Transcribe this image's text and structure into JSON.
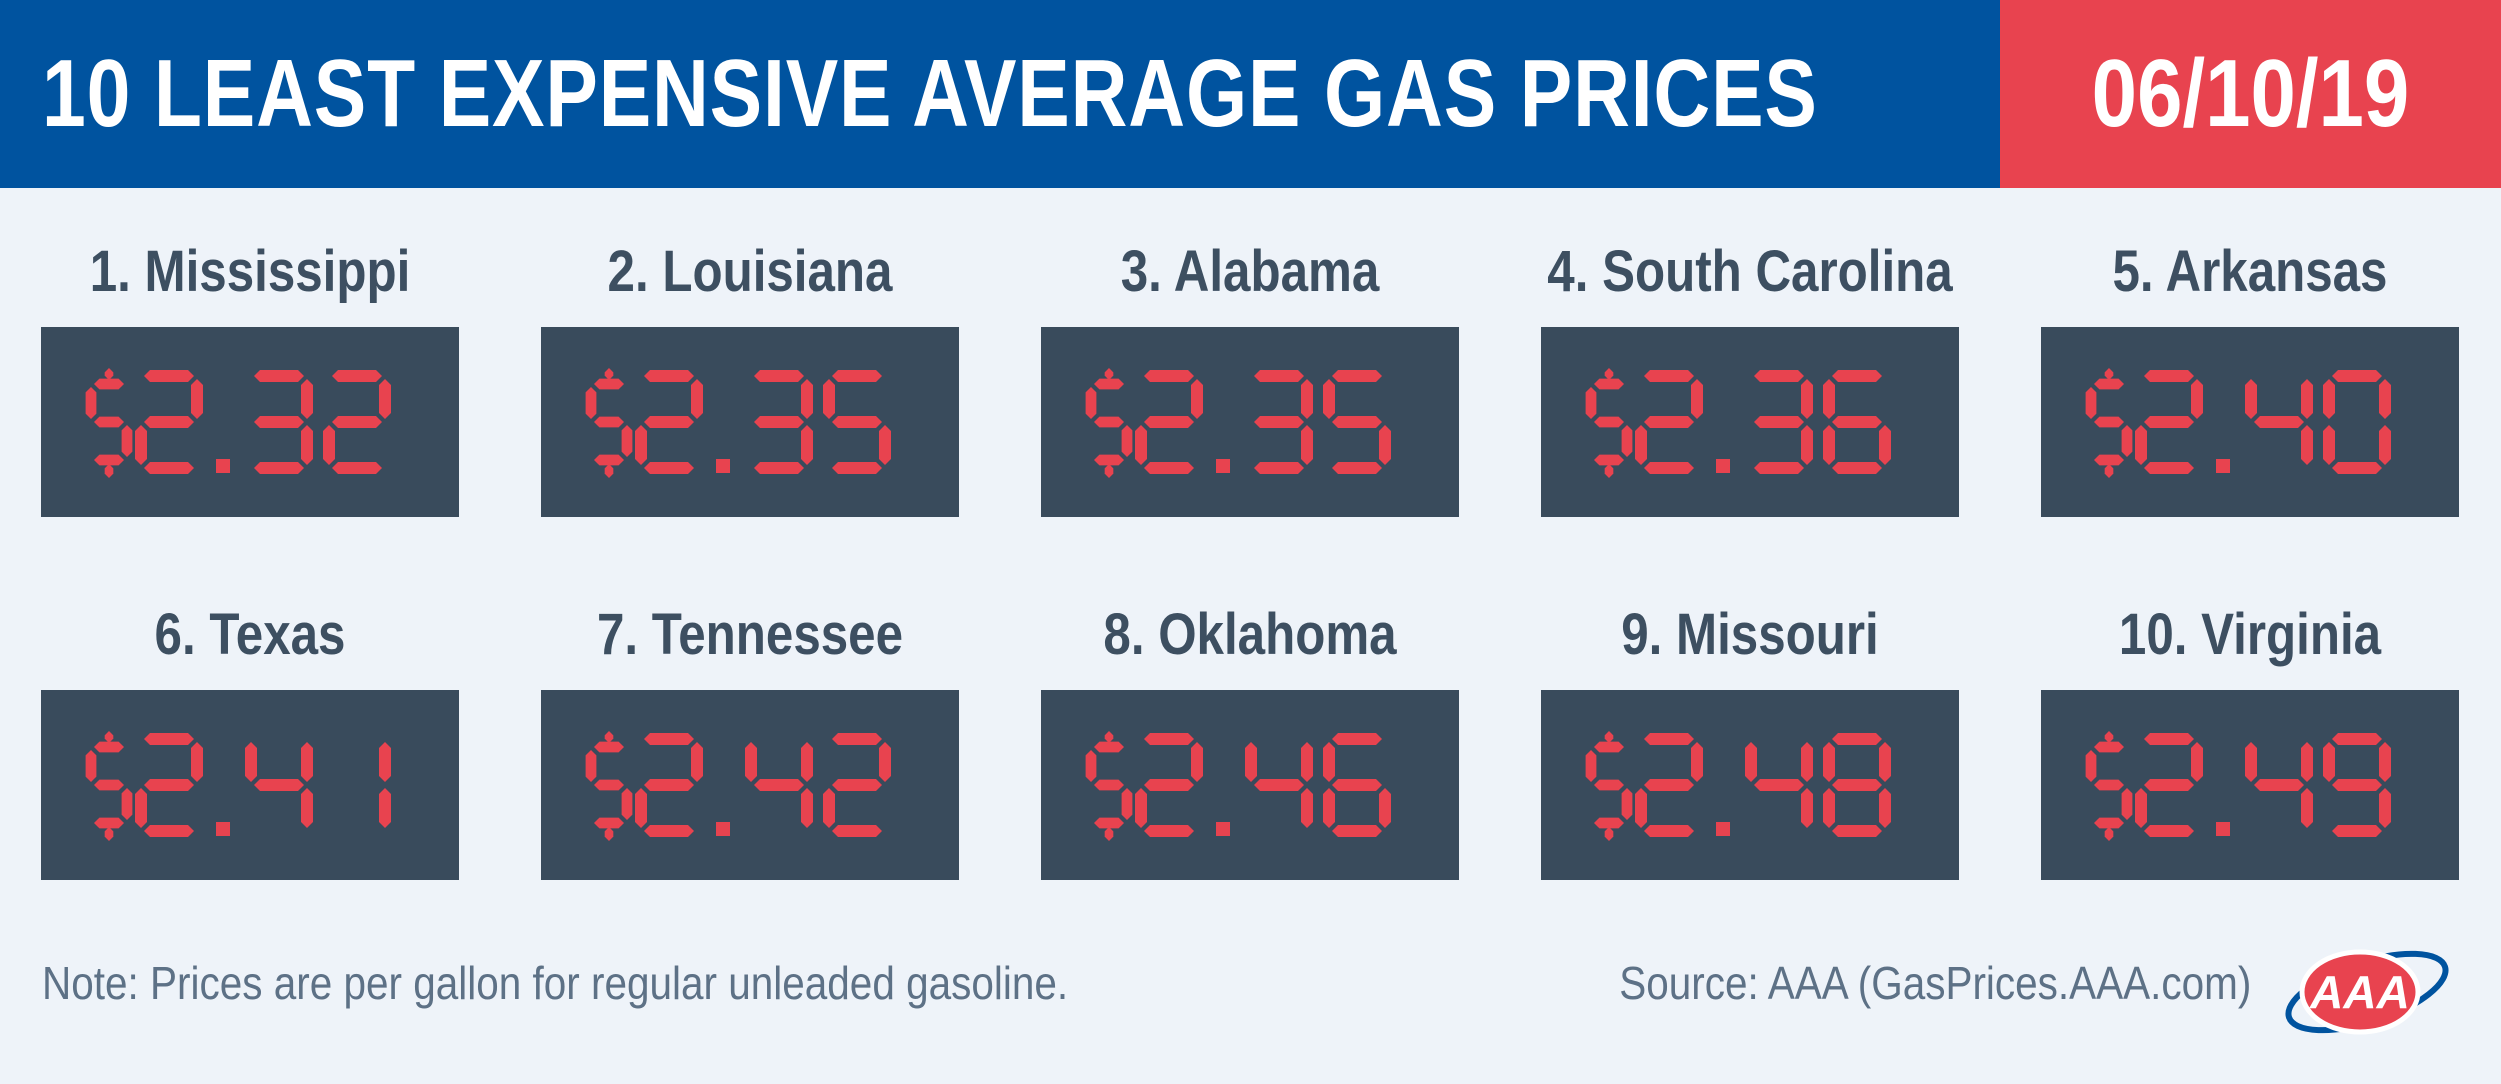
{
  "header": {
    "title": "10 LEAST EXPENSIVE AVERAGE GAS PRICES",
    "date": "06/10/19"
  },
  "entries": [
    {
      "label": "1. Mississippi",
      "price": "$2.32"
    },
    {
      "label": "2. Louisiana",
      "price": "$2.35"
    },
    {
      "label": "3. Alabama",
      "price": "$2.35"
    },
    {
      "label": "4. South Carolina",
      "price": "$2.36"
    },
    {
      "label": "5. Arkansas",
      "price": "$2.40"
    },
    {
      "label": "6. Texas",
      "price": "$2.41"
    },
    {
      "label": "7. Tennessee",
      "price": "$2.42"
    },
    {
      "label": "8. Oklahoma",
      "price": "$2.46"
    },
    {
      "label": "9. Missouri",
      "price": "$2.48"
    },
    {
      "label": "10. Virginia",
      "price": "$2.49"
    }
  ],
  "footer": {
    "note": "Note: Prices are per gallon for regular unleaded gasoline.",
    "source": "Source: AAA (GasPrices.AAA.com)"
  },
  "logo": {
    "text": "AAA",
    "icon": "aaa-logo-icon"
  },
  "colors": {
    "title_bar": "#00539f",
    "date_bar": "#e8434f",
    "price_box": "#394b5c",
    "digit": "#e8434f",
    "background": "#eef3f9",
    "label": "#3d4f61"
  }
}
